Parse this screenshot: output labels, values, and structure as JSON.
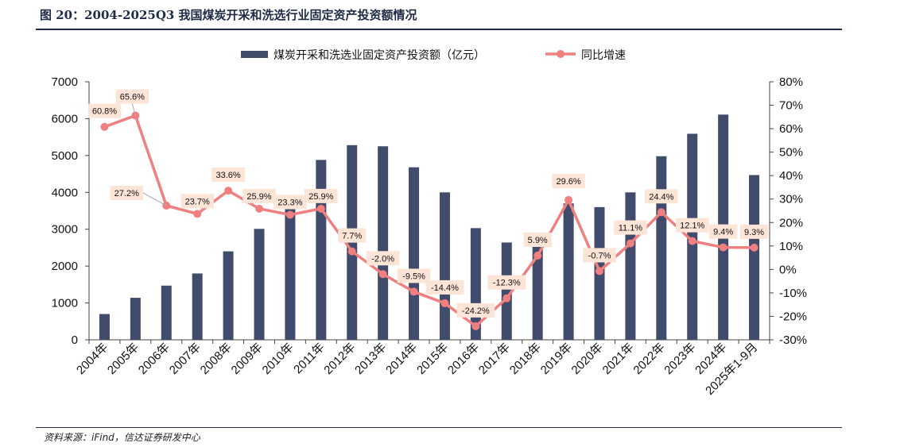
{
  "title": "图 20：2004-2025Q3 我国煤炭开采和洗选行业固定资产投资额情况",
  "source": "资料来源：iFind，信达证券研发中心",
  "colors": {
    "bar": "#414b6b",
    "line": "#f08080",
    "label_bg": "#fce4d6",
    "rule": "#1f2a44"
  },
  "chart_data": {
    "type": "bar",
    "categories": [
      "2004年",
      "2005年",
      "2006年",
      "2007年",
      "2008年",
      "2009年",
      "2010年",
      "2011年",
      "2012年",
      "2013年",
      "2014年",
      "2015年",
      "2016年",
      "2017年",
      "2018年",
      "2019年",
      "2020年",
      "2021年",
      "2022年",
      "2023年",
      "2024年",
      "2025年1-9月"
    ],
    "series": [
      {
        "name": "煤炭开采和洗选业固定资产投资额（亿元）",
        "type": "bar",
        "axis": "left",
        "values": [
          700,
          1140,
          1470,
          1800,
          2400,
          3010,
          3620,
          4880,
          5280,
          5250,
          4680,
          4000,
          3030,
          2640,
          2520,
          3700,
          3600,
          4000,
          4980,
          5590,
          6110,
          4470
        ]
      },
      {
        "name": "同比增速",
        "type": "line",
        "axis": "right",
        "values": [
          60.8,
          65.6,
          27.2,
          23.7,
          33.6,
          25.9,
          23.3,
          25.9,
          7.7,
          -2.0,
          -9.5,
          -14.4,
          -24.2,
          -12.3,
          5.9,
          29.6,
          -0.7,
          11.1,
          24.4,
          12.1,
          9.4,
          9.3
        ],
        "labels": [
          "60.8%",
          "65.6%",
          "27.2%",
          "23.7%",
          "33.6%",
          "25.9%",
          "23.3%",
          "25.9%",
          "7.7%",
          "-2.0%",
          "-9.5%",
          "-14.4%",
          "-24.2%",
          "-12.3%",
          "5.9%",
          "29.6%",
          "-0.7%",
          "11.1%",
          "24.4%",
          "12.1%",
          "9.4%",
          "9.3%"
        ]
      }
    ],
    "y_left": {
      "min": 0,
      "max": 7000,
      "ticks": [
        "0",
        "1000",
        "2000",
        "3000",
        "4000",
        "5000",
        "6000",
        "7000"
      ]
    },
    "y_right": {
      "min": -30,
      "max": 80,
      "ticks": [
        "-30%",
        "-20%",
        "-10%",
        "0%",
        "10%",
        "20%",
        "30%",
        "40%",
        "50%",
        "60%",
        "70%",
        "80%"
      ]
    },
    "legend": "top-center",
    "grid": false
  }
}
